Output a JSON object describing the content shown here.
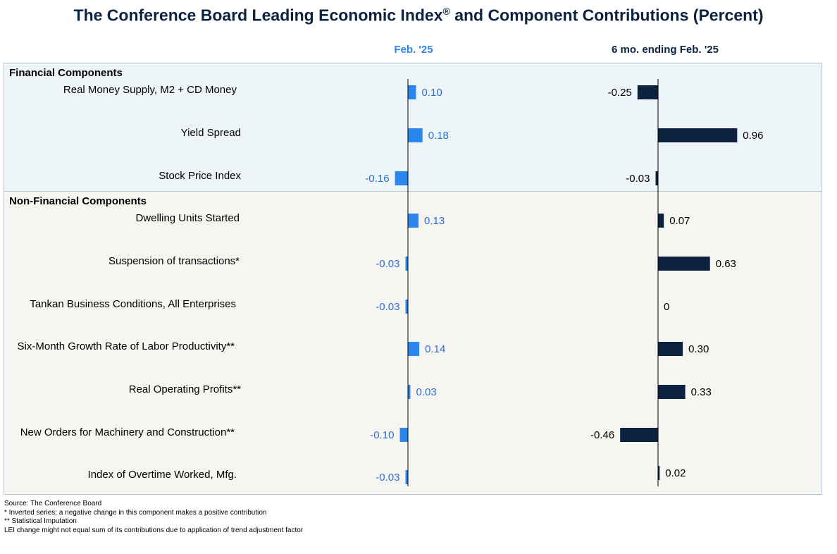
{
  "title": "The Conference Board Leading Economic Index",
  "title_sup": "®",
  "title_suffix": " and Component Contributions (Percent)",
  "columns": {
    "left": "Feb. '25",
    "right": "6 mo. ending Feb. '25"
  },
  "sections": {
    "financial": "Financial Components",
    "non_financial": "Non-Financial Components"
  },
  "colors": {
    "left_bar": "#2b86ee",
    "right_bar": "#0b2240",
    "left_text": "#2b6fd6",
    "right_text": "#000000"
  },
  "chart_data": {
    "type": "bar",
    "orientation": "horizontal",
    "categories": [
      "Real Money Supply, M2 + CD Money",
      "Yield Spread",
      "Stock Price Index",
      "Dwelling Units Started",
      "Suspension of transactions*",
      "Tankan Business Conditions, All Enterprises",
      "Six-Month Growth Rate of Labor Productivity**",
      "Real Operating Profits**",
      "New Orders for Machinery and Construction**",
      "Index of Overtime Worked, Mfg."
    ],
    "series": [
      {
        "name": "Feb. '25",
        "values": [
          0.1,
          0.18,
          -0.16,
          0.13,
          -0.03,
          -0.03,
          0.14,
          0.03,
          -0.1,
          -0.03
        ],
        "labels": [
          "0.10",
          "0.18",
          "-0.16",
          "0.13",
          "-0.03",
          "-0.03",
          "0.14",
          "0.03",
          "-0.10",
          "-0.03"
        ]
      },
      {
        "name": "6 mo. ending Feb. '25",
        "values": [
          -0.25,
          0.96,
          -0.03,
          0.07,
          0.63,
          0,
          0.3,
          0.33,
          -0.46,
          0.02
        ],
        "labels": [
          "-0.25",
          "0.96",
          "-0.03",
          "0.07",
          "0.63",
          "0",
          "0.30",
          "0.33",
          "-0.46",
          "0.02"
        ]
      }
    ]
  },
  "footnotes": [
    "Source: The Conference Board",
    "*  Inverted series; a negative  change in this component makes a positive contribution",
    "** Statistical Imputation",
    "LEI change might not equal sum of its contributions due to application of trend adjustment  factor"
  ]
}
